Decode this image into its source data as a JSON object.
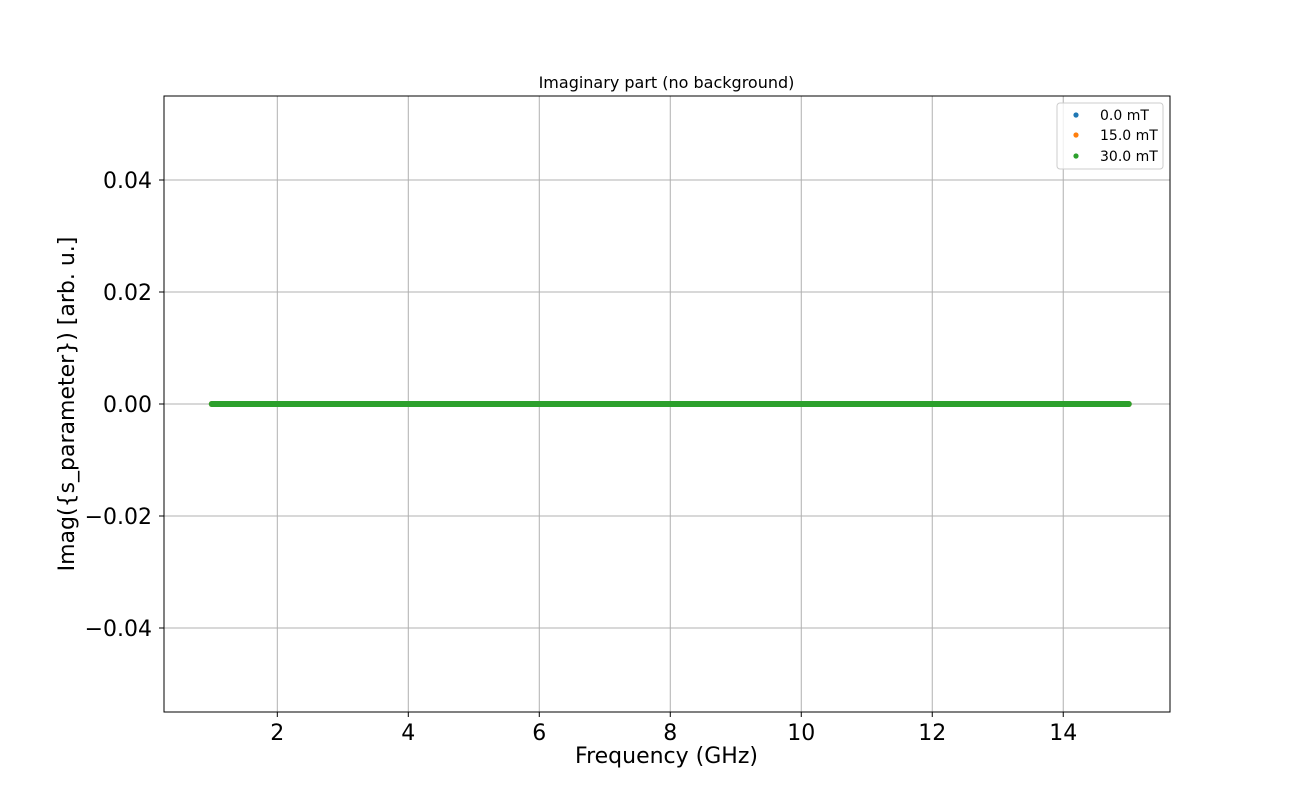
{
  "chart_data": {
    "type": "scatter",
    "title": "Imaginary part (no background)",
    "xlabel": "Frequency (GHz)",
    "ylabel": "Imag({s_parameter}) [arb. u.]",
    "xlim": [
      0.27,
      15.63
    ],
    "ylim": [
      -0.055,
      0.055
    ],
    "xticks": [
      2,
      4,
      6,
      8,
      10,
      12,
      14
    ],
    "xtick_labels": [
      "2",
      "4",
      "6",
      "8",
      "10",
      "12",
      "14"
    ],
    "yticks": [
      -0.04,
      -0.02,
      0.0,
      0.02,
      0.04
    ],
    "ytick_labels": [
      "−0.04",
      "−0.02",
      "0.00",
      "0.02",
      "0.04"
    ],
    "grid": true,
    "legend_position": "top-right",
    "x_range": [
      1.0,
      15.0
    ],
    "series": [
      {
        "name": "0.0 mT",
        "color": "#1f77b4",
        "x_range": [
          1.0,
          15.0
        ],
        "y_value": 0.0
      },
      {
        "name": "15.0 mT",
        "color": "#ff7f0e",
        "x_range": [
          1.0,
          15.0
        ],
        "y_value": 0.0
      },
      {
        "name": "30.0 mT",
        "color": "#2ca02c",
        "x_range": [
          1.0,
          15.0
        ],
        "y_value": 0.0
      }
    ]
  }
}
